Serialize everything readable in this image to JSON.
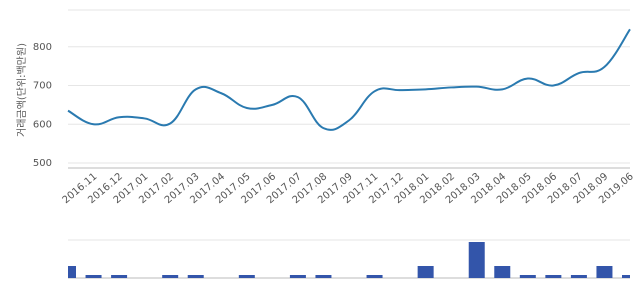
{
  "chart_data": [
    {
      "type": "line",
      "y_label": "거래금액(단위:백만원)",
      "categories": [
        null,
        "2016.11",
        "2016.12",
        "2017.01",
        "2017.02",
        "2017.03",
        "2017.04",
        "2017.05",
        "2017.06",
        "2017.07",
        "2017.08",
        "2017.09",
        "2017.11",
        "2017.12",
        "2018.01",
        "2018.02",
        "2018.03",
        "2018.04",
        "2018.05",
        "2018.06",
        "2018.07",
        "2018.09",
        "2019.06"
      ],
      "values": [
        635,
        600,
        618,
        615,
        602,
        690,
        680,
        642,
        650,
        670,
        590,
        610,
        685,
        688,
        690,
        695,
        697,
        690,
        718,
        700,
        732,
        748,
        845
      ],
      "color": "#2a7ab0",
      "ylim": [
        500,
        900
      ],
      "yticks": [
        500,
        600,
        700,
        800
      ],
      "grid": true
    },
    {
      "type": "bar",
      "values": [
        4,
        1,
        1,
        null,
        1,
        1,
        null,
        1,
        null,
        1,
        1,
        null,
        1,
        null,
        4,
        null,
        12,
        4,
        1,
        1,
        1,
        4,
        1
      ],
      "color": "#3355aa",
      "ylim": [
        0,
        12
      ]
    }
  ]
}
